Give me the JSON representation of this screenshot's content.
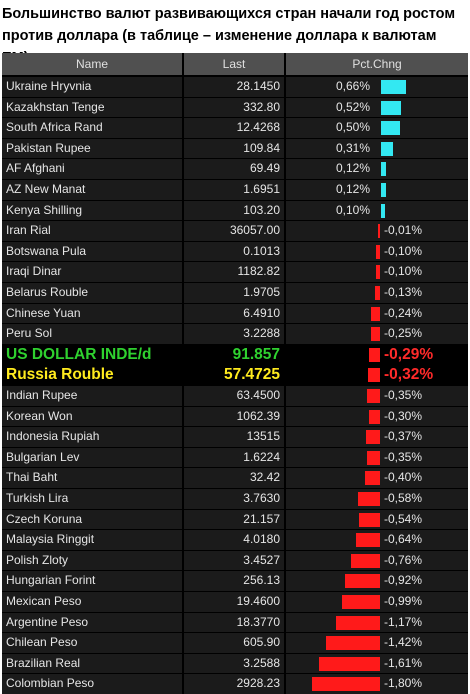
{
  "headline": "Большинство валют развивающихся стран начали год ростом против доллара (в таблице – изменение доллара к валютам ЕМ)",
  "columns": {
    "name": "Name",
    "last": "Last",
    "pct": "Pct.Chng"
  },
  "colors": {
    "positive_bar": "#33e8f2",
    "negative_bar": "#ff1a1a",
    "usd_text": "#2fd12f",
    "rub_text": "#ffeb1e",
    "negative_pct_highlight": "#ff2a2a"
  },
  "chart_data": {
    "type": "table",
    "columns": [
      "Name",
      "Last",
      "Pct.Chng"
    ],
    "rows": [
      {
        "name": "Ukraine Hryvnia",
        "last": "28.1450",
        "pct_label": "0,66%",
        "pct": 0.66
      },
      {
        "name": "Kazakhstan Tenge",
        "last": "332.80",
        "pct_label": "0,52%",
        "pct": 0.52
      },
      {
        "name": "South Africa Rand",
        "last": "12.4268",
        "pct_label": "0,50%",
        "pct": 0.5
      },
      {
        "name": "Pakistan Rupee",
        "last": "109.84",
        "pct_label": "0,31%",
        "pct": 0.31
      },
      {
        "name": "AF Afghani",
        "last": "69.49",
        "pct_label": "0,12%",
        "pct": 0.12
      },
      {
        "name": "AZ New Manat",
        "last": "1.6951",
        "pct_label": "0,12%",
        "pct": 0.12
      },
      {
        "name": "Kenya Shilling",
        "last": "103.20",
        "pct_label": "0,10%",
        "pct": 0.1
      },
      {
        "name": "Iran Rial",
        "last": "36057.00",
        "pct_label": "-0,01%",
        "pct": -0.01
      },
      {
        "name": "Botswana Pula",
        "last": "0.1013",
        "pct_label": "-0,10%",
        "pct": -0.1
      },
      {
        "name": "Iraqi Dinar",
        "last": "1182.82",
        "pct_label": "-0,10%",
        "pct": -0.1
      },
      {
        "name": "Belarus Rouble",
        "last": "1.9705",
        "pct_label": "-0,13%",
        "pct": -0.13
      },
      {
        "name": "Chinese Yuan",
        "last": "6.4910",
        "pct_label": "-0,24%",
        "pct": -0.24
      },
      {
        "name": "Peru Sol",
        "last": "3.2288",
        "pct_label": "-0,25%",
        "pct": -0.25
      },
      {
        "name": "US DOLLAR INDE/d",
        "last": "91.857",
        "pct_label": "-0,29%",
        "pct": -0.29,
        "highlight": "usd"
      },
      {
        "name": "Russia Rouble",
        "last": "57.4725",
        "pct_label": "-0,32%",
        "pct": -0.32,
        "highlight": "rub"
      },
      {
        "name": "Indian Rupee",
        "last": "63.4500",
        "pct_label": "-0,35%",
        "pct": -0.35
      },
      {
        "name": "Korean Won",
        "last": "1062.39",
        "pct_label": "-0,30%",
        "pct": -0.3
      },
      {
        "name": "Indonesia Rupiah",
        "last": "13515",
        "pct_label": "-0,37%",
        "pct": -0.37
      },
      {
        "name": "Bulgarian Lev",
        "last": "1.6224",
        "pct_label": "-0,35%",
        "pct": -0.35
      },
      {
        "name": "Thai Baht",
        "last": "32.42",
        "pct_label": "-0,40%",
        "pct": -0.4
      },
      {
        "name": "Turkish Lira",
        "last": "3.7630",
        "pct_label": "-0,58%",
        "pct": -0.58
      },
      {
        "name": "Czech Koruna",
        "last": "21.157",
        "pct_label": "-0,54%",
        "pct": -0.54
      },
      {
        "name": "Malaysia Ringgit",
        "last": "4.0180",
        "pct_label": "-0,64%",
        "pct": -0.64
      },
      {
        "name": "Polish Zloty",
        "last": "3.4527",
        "pct_label": "-0,76%",
        "pct": -0.76
      },
      {
        "name": "Hungarian Forint",
        "last": "256.13",
        "pct_label": "-0,92%",
        "pct": -0.92
      },
      {
        "name": "Mexican Peso",
        "last": "19.4600",
        "pct_label": "-0,99%",
        "pct": -0.99
      },
      {
        "name": "Argentine Peso",
        "last": "18.3770",
        "pct_label": "-1,17%",
        "pct": -1.17
      },
      {
        "name": "Chilean Peso",
        "last": "605.90",
        "pct_label": "-1,42%",
        "pct": -1.42
      },
      {
        "name": "Brazilian Real",
        "last": "3.2588",
        "pct_label": "-1,61%",
        "pct": -1.61
      },
      {
        "name": "Colombian Peso",
        "last": "2928.23",
        "pct_label": "-1,80%",
        "pct": -1.8
      }
    ]
  }
}
